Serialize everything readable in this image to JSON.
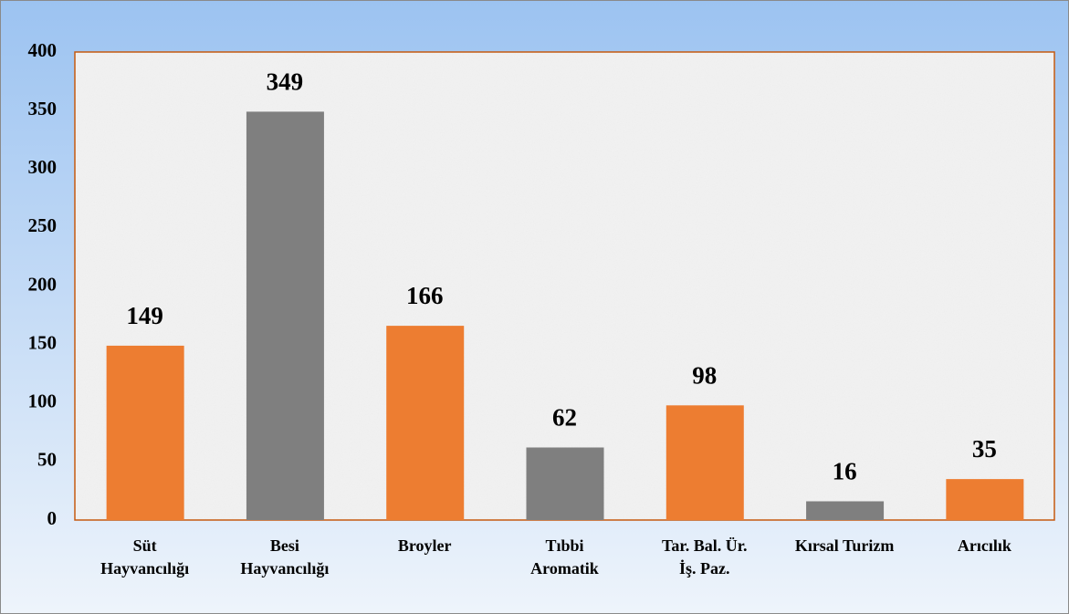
{
  "chart_data": {
    "type": "bar",
    "categories": [
      "Süt\nHayvancılığı",
      "Besi\nHayvancılığı",
      "Broyler",
      "Tıbbi\nAromatik",
      "Tar. Bal. Ür.\nİş. Paz.",
      "Kırsal Turizm",
      "Arıcılık"
    ],
    "values": [
      149,
      349,
      166,
      62,
      98,
      16,
      35
    ],
    "colors": [
      "#ed7d31",
      "#7f7f7f",
      "#ed7d31",
      "#7f7f7f",
      "#ed7d31",
      "#7f7f7f",
      "#ed7d31"
    ],
    "ylim": [
      0,
      400
    ],
    "yticks": [
      0,
      50,
      100,
      150,
      200,
      250,
      300,
      350,
      400
    ],
    "grid": false
  }
}
